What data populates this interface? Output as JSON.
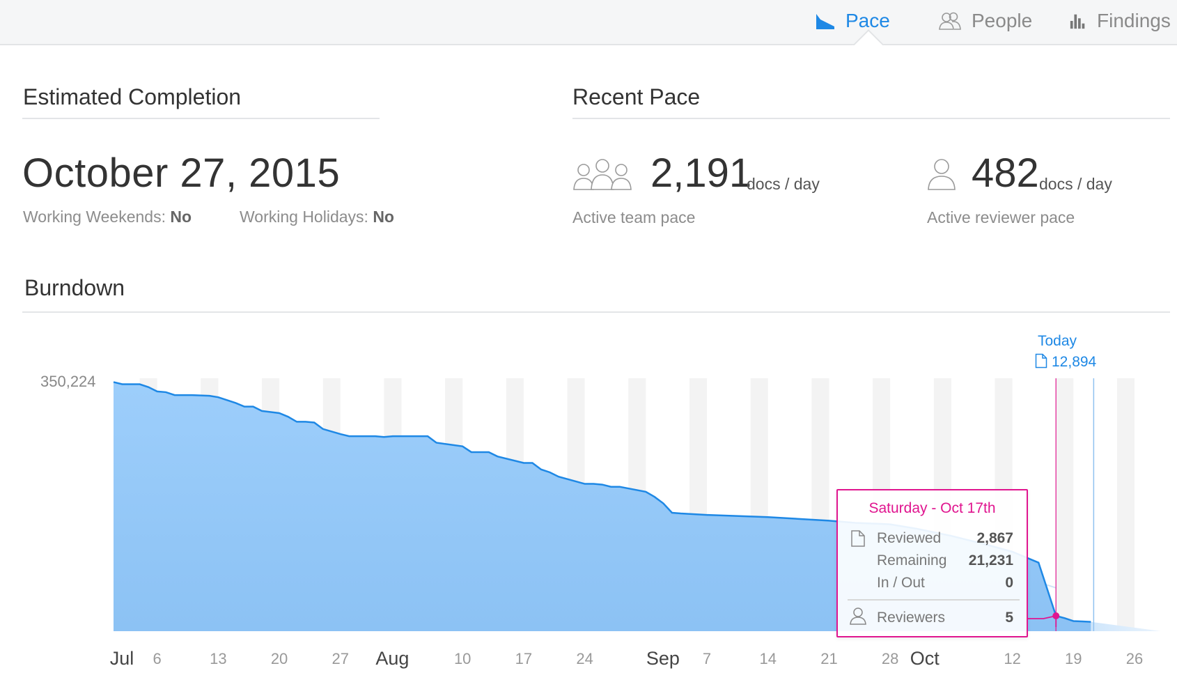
{
  "nav": {
    "tabs": [
      {
        "label": "Pace",
        "icon": "area-chart-icon",
        "active": true
      },
      {
        "label": "People",
        "icon": "people-icon",
        "active": false
      },
      {
        "label": "Findings",
        "icon": "bar-chart-icon",
        "active": false
      }
    ]
  },
  "estimated": {
    "title": "Estimated Completion",
    "date": "October 27, 2015",
    "weekends_label": "Working Weekends:",
    "weekends_value": "No",
    "holidays_label": "Working Holidays:",
    "holidays_value": "No"
  },
  "recent_pace": {
    "title": "Recent Pace",
    "team_value": "2,191",
    "team_unit": "docs / day",
    "team_caption": "Active team pace",
    "reviewer_value": "482",
    "reviewer_unit": "docs / day",
    "reviewer_caption": "Active reviewer pace"
  },
  "burndown": {
    "title": "Burndown",
    "y_max_label": "350,224",
    "today_label": "Today",
    "today_value": "12,894",
    "tooltip": {
      "title": "Saturday - Oct 17th",
      "reviewed_label": "Reviewed",
      "reviewed_value": "2,867",
      "remaining_label": "Remaining",
      "remaining_value": "21,231",
      "inout_label": "In / Out",
      "inout_value": "0",
      "reviewers_label": "Reviewers",
      "reviewers_value": "5"
    }
  },
  "colors": {
    "accent": "#1e88e5",
    "highlight": "#e0158f",
    "area_fill": "#90c8fa"
  },
  "chart_data": {
    "type": "area",
    "title": "Burndown",
    "x_start": "2015-07-01",
    "x_end": "2015-10-31",
    "x_ticks": [
      {
        "date": "2015-07-01",
        "label": "Jul",
        "month": true
      },
      {
        "date": "2015-07-06",
        "label": "6"
      },
      {
        "date": "2015-07-13",
        "label": "13"
      },
      {
        "date": "2015-07-20",
        "label": "20"
      },
      {
        "date": "2015-07-27",
        "label": "27"
      },
      {
        "date": "2015-08-01",
        "label": "Aug",
        "month": true
      },
      {
        "date": "2015-08-10",
        "label": "10"
      },
      {
        "date": "2015-08-17",
        "label": "17"
      },
      {
        "date": "2015-08-24",
        "label": "24"
      },
      {
        "date": "2015-09-01",
        "label": "Sep",
        "month": true
      },
      {
        "date": "2015-09-07",
        "label": "7"
      },
      {
        "date": "2015-09-14",
        "label": "14"
      },
      {
        "date": "2015-09-21",
        "label": "21"
      },
      {
        "date": "2015-09-28",
        "label": "28"
      },
      {
        "date": "2015-10-01",
        "label": "Oct",
        "month": true
      },
      {
        "date": "2015-10-12",
        "label": "12"
      },
      {
        "date": "2015-10-19",
        "label": "19"
      },
      {
        "date": "2015-10-26",
        "label": "26"
      }
    ],
    "ylim": [
      0,
      350224
    ],
    "series": [
      {
        "name": "Remaining",
        "x": [
          "2015-07-01",
          "2015-07-02",
          "2015-07-03",
          "2015-07-04",
          "2015-07-05",
          "2015-07-06",
          "2015-07-07",
          "2015-07-08",
          "2015-07-09",
          "2015-07-10",
          "2015-07-12",
          "2015-07-13",
          "2015-07-14",
          "2015-07-15",
          "2015-07-16",
          "2015-07-17",
          "2015-07-18",
          "2015-07-20",
          "2015-07-21",
          "2015-07-22",
          "2015-07-23",
          "2015-07-24",
          "2015-07-25",
          "2015-07-27",
          "2015-07-28",
          "2015-07-29",
          "2015-07-30",
          "2015-07-31",
          "2015-08-01",
          "2015-08-02",
          "2015-08-03",
          "2015-08-04",
          "2015-08-05",
          "2015-08-06",
          "2015-08-07",
          "2015-08-10",
          "2015-08-11",
          "2015-08-12",
          "2015-08-13",
          "2015-08-14",
          "2015-08-17",
          "2015-08-18",
          "2015-08-19",
          "2015-08-20",
          "2015-08-21",
          "2015-08-24",
          "2015-08-25",
          "2015-08-26",
          "2015-08-27",
          "2015-08-28",
          "2015-08-31",
          "2015-09-01",
          "2015-09-02",
          "2015-09-03",
          "2015-09-04",
          "2015-09-07",
          "2015-09-14",
          "2015-09-21",
          "2015-09-24",
          "2015-09-28",
          "2015-10-01",
          "2015-10-05",
          "2015-10-09",
          "2015-10-12",
          "2015-10-15",
          "2015-10-17",
          "2015-10-18",
          "2015-10-19",
          "2015-10-20",
          "2015-10-21"
        ],
        "values": [
          345000,
          342000,
          342000,
          342000,
          338000,
          332000,
          331000,
          327000,
          327000,
          327000,
          326000,
          324000,
          320000,
          316000,
          311000,
          311000,
          305000,
          302000,
          297000,
          290000,
          290000,
          289000,
          280000,
          273000,
          270000,
          270000,
          270000,
          270000,
          269000,
          270000,
          270000,
          270000,
          270000,
          270000,
          261000,
          256000,
          248000,
          248000,
          248000,
          242000,
          233000,
          233000,
          224000,
          220000,
          214000,
          204000,
          204000,
          203000,
          200000,
          200000,
          193000,
          186000,
          177000,
          164000,
          163000,
          161000,
          158000,
          153000,
          150000,
          148000,
          142000,
          132000,
          120000,
          110000,
          95000,
          21231,
          18000,
          14000,
          13500,
          12894
        ]
      }
    ],
    "today_date": "2015-10-21",
    "highlight_date": "2015-10-17",
    "grid": true
  }
}
